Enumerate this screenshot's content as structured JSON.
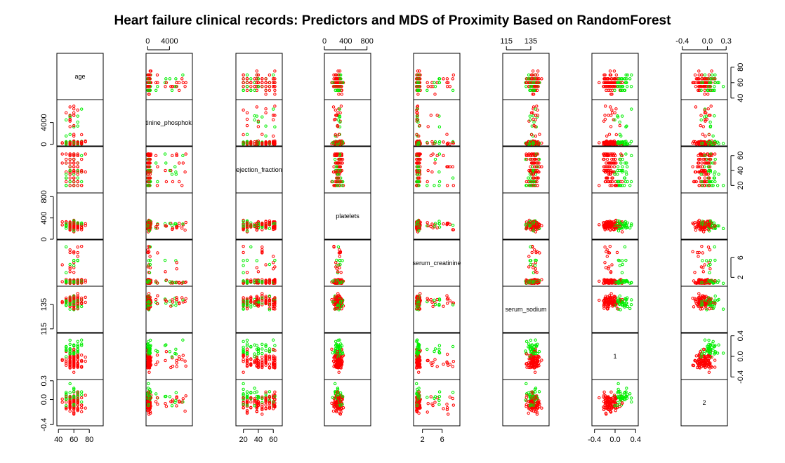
{
  "chart_data": {
    "type": "scatter",
    "title": "Heart failure clinical records: Predictors and MDS of Proximity Based on RandomForest",
    "subtitle": "",
    "layout": "scatterplot-matrix",
    "legend": "none",
    "grid": false,
    "colors": {
      "class_0": "#ff0000",
      "class_1": "#00ee00"
    },
    "variables": [
      {
        "name": "age",
        "range": [
          38,
          98
        ],
        "ticks": [
          40,
          60,
          80
        ]
      },
      {
        "name": "creatinine_phosphokinase",
        "label": "tinine_phosphoki",
        "range": [
          -300,
          8200
        ],
        "ticks": [
          0,
          4000
        ]
      },
      {
        "name": "ejection_fraction",
        "range": [
          10,
          72
        ],
        "ticks": [
          20,
          40,
          60
        ]
      },
      {
        "name": "platelets",
        "range": [
          0,
          870
        ],
        "ticks": [
          0,
          400,
          800
        ]
      },
      {
        "name": "serum_creatinine",
        "label": "serum_creatinine",
        "range": [
          0.2,
          9.6
        ],
        "ticks": [
          2,
          6
        ]
      },
      {
        "name": "serum_sodium",
        "range": [
          112,
          150
        ],
        "ticks": [
          115,
          135
        ]
      },
      {
        "name": "1",
        "range": [
          -0.45,
          0.45
        ],
        "ticks": [
          -0.4,
          0.0,
          0.4
        ]
      },
      {
        "name": "2",
        "range": [
          -0.42,
          0.32
        ],
        "ticks": [
          -0.4,
          0.0,
          0.3
        ]
      }
    ]
  }
}
